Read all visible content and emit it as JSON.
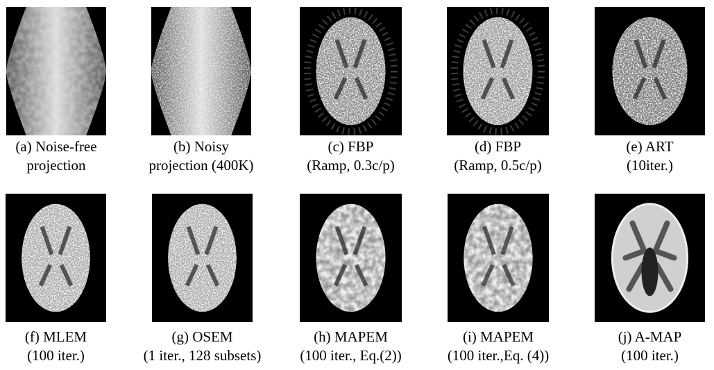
{
  "panels": [
    {
      "caption": [
        "(a) Noise-free",
        "projection"
      ]
    },
    {
      "caption": [
        "(b) Noisy",
        "projection (400K)"
      ]
    },
    {
      "caption": [
        "(c) FBP",
        "(Ramp, 0.3c/p)"
      ]
    },
    {
      "caption": [
        "(d) FBP",
        "(Ramp, 0.5c/p)"
      ]
    },
    {
      "caption": [
        "(e) ART",
        "(10iter.)"
      ]
    },
    {
      "caption": [
        "(f) MLEM",
        "(100 iter.)"
      ]
    },
    {
      "caption": [
        "(g) OSEM",
        "(1 iter., 128 subsets)"
      ]
    },
    {
      "caption": [
        "(h) MAPEM",
        "(100 iter., Eq.(2))"
      ]
    },
    {
      "caption": [
        "(i) MAPEM",
        "(100 iter.,Eq. (4))"
      ]
    },
    {
      "caption": [
        "(j) A-MAP",
        "(100 iter.)"
      ]
    }
  ]
}
